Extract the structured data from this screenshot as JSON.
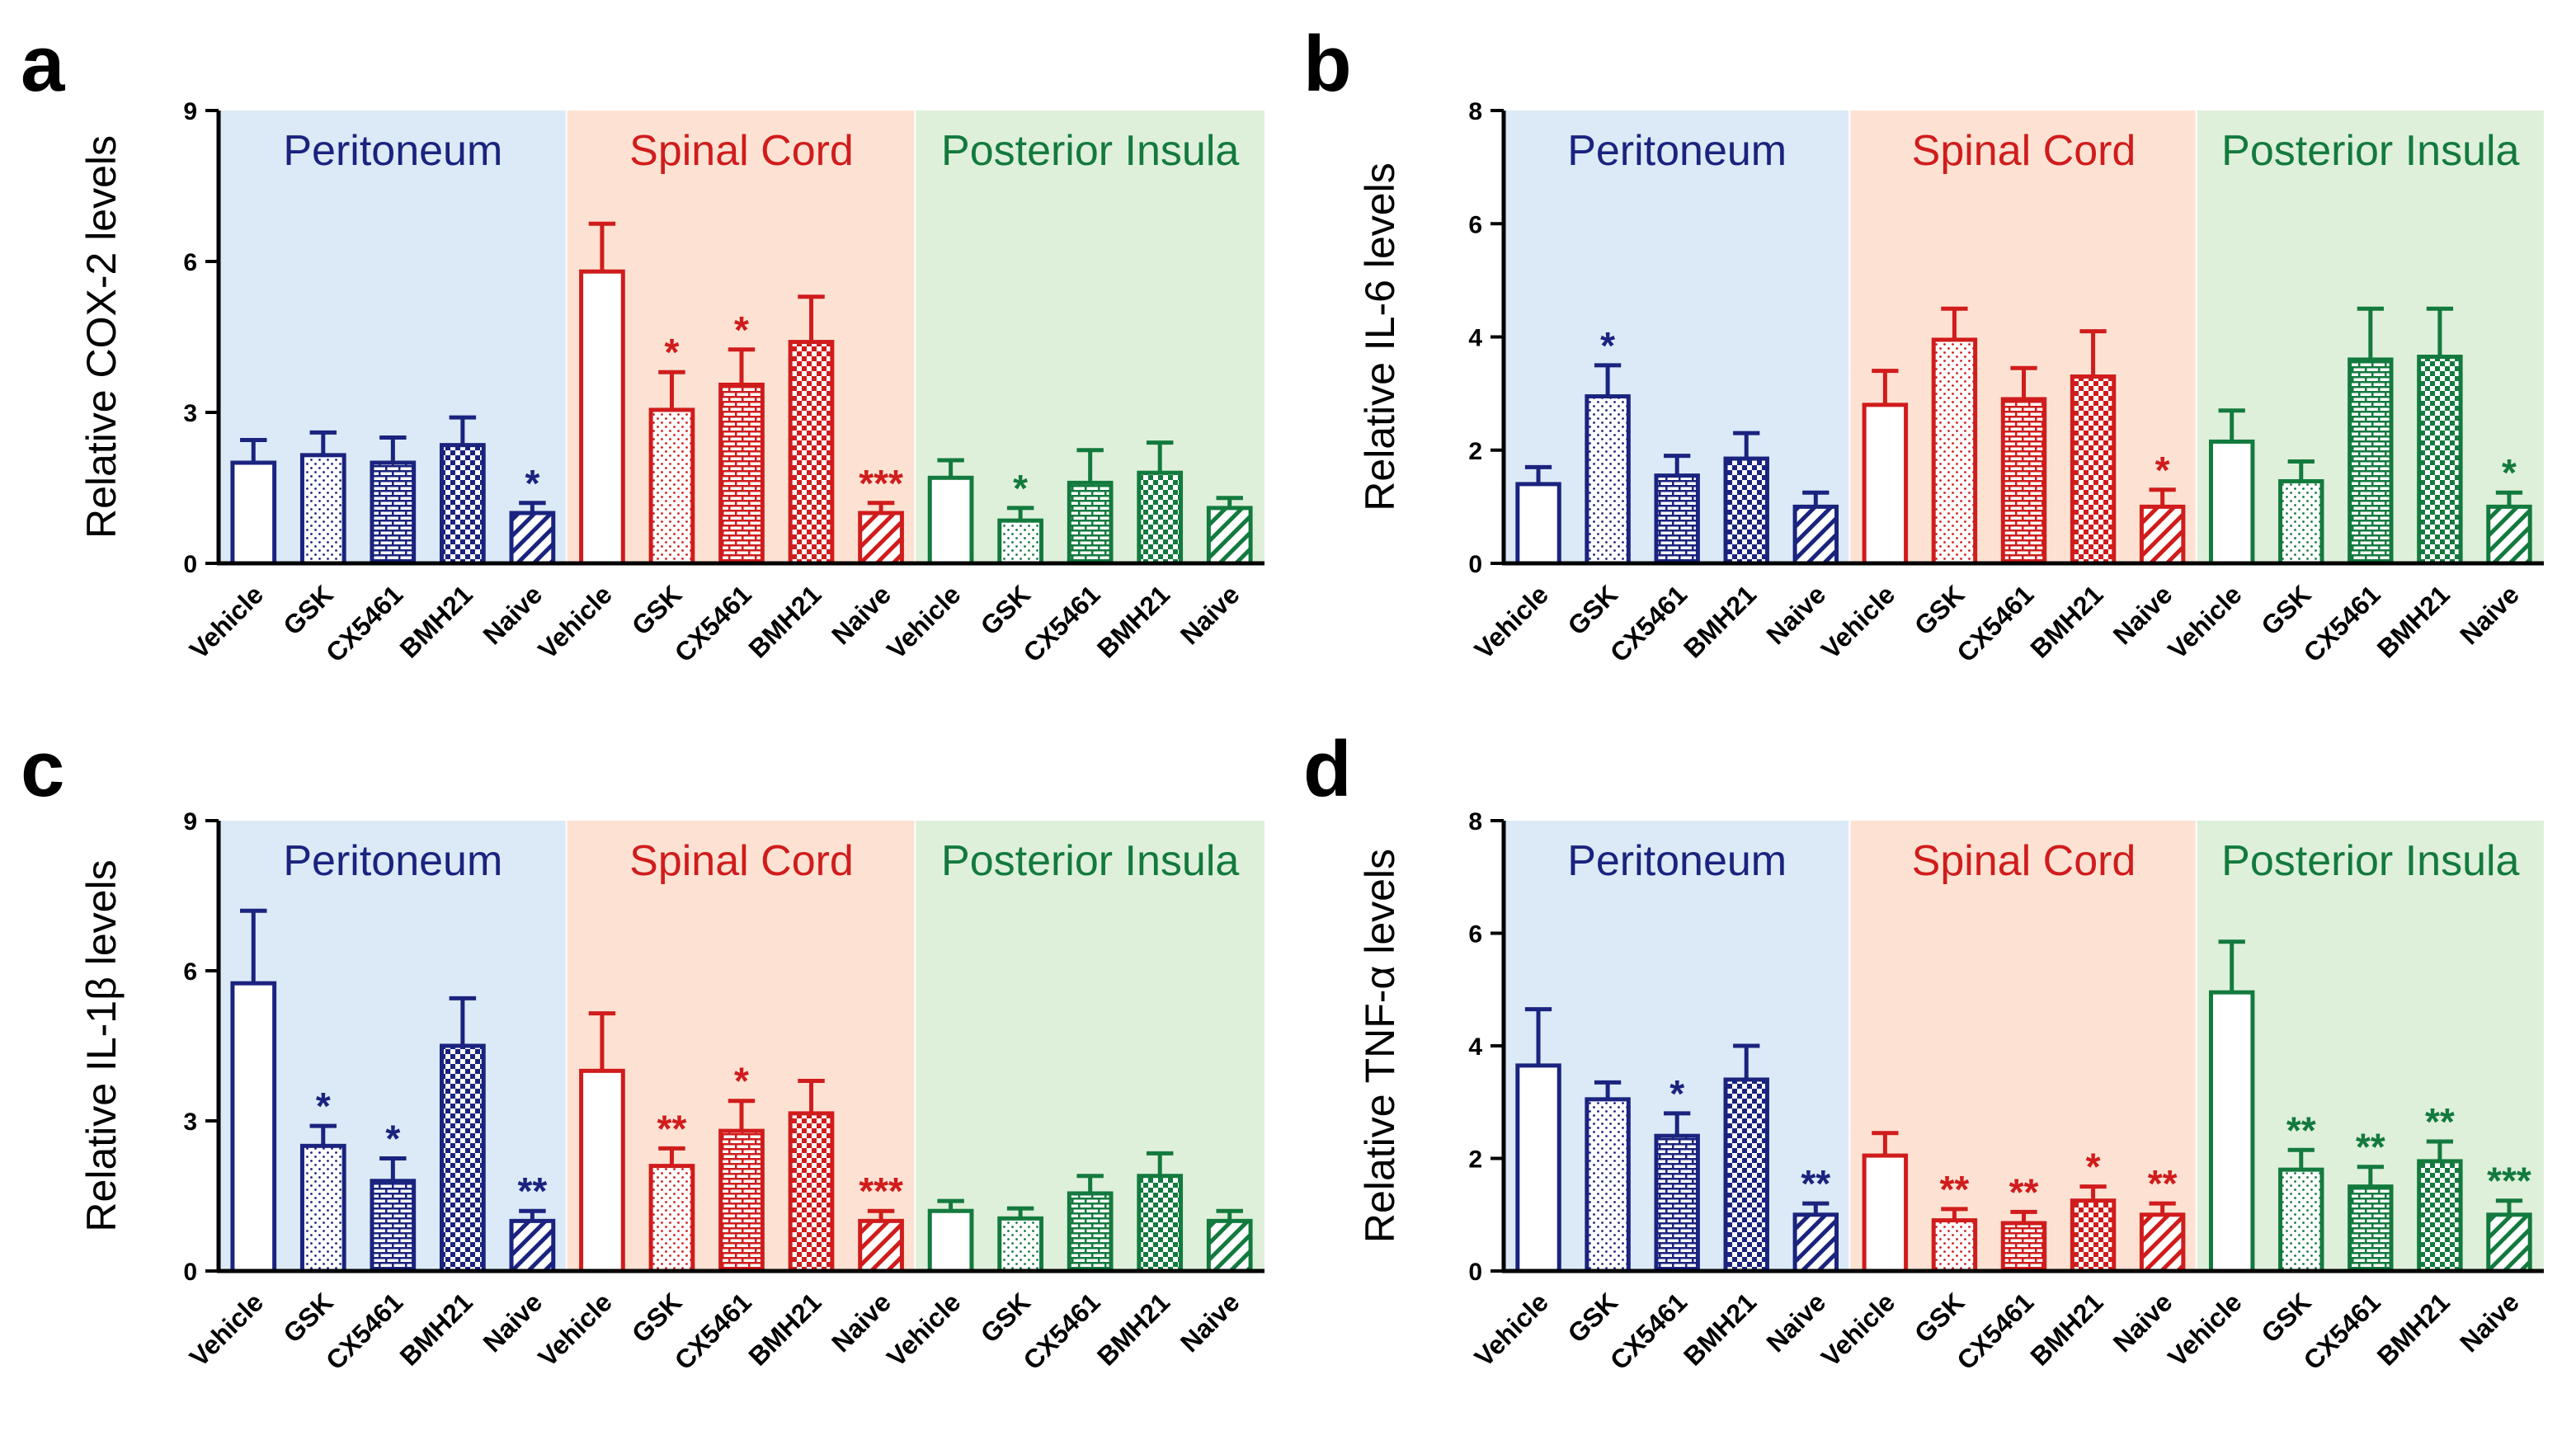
{
  "colors": {
    "peritoneum": "#1a237e",
    "spinal": "#d01c1c",
    "insula": "#137a3e",
    "bg_peritoneum": "#dbeaf6",
    "bg_spinal": "#fde2d3",
    "bg_insula": "#dff0da"
  },
  "regions": [
    "Peritoneum",
    "Spinal Cord",
    "Posterior Insula"
  ],
  "categories": [
    "Vehicle",
    "GSK",
    "CX5461",
    "BMH21",
    "Naive"
  ],
  "chart_data": [
    {
      "panel": "a",
      "type": "bar",
      "ylabel": "Relative COX-2 levels",
      "ylim": [
        0,
        9
      ],
      "yticks": [
        "0",
        "3",
        "6",
        "9"
      ],
      "yticks_num": [
        0,
        3,
        6,
        9
      ],
      "series": [
        {
          "name": "Peritoneum",
          "values": [
            2.0,
            2.15,
            2.0,
            2.35,
            1.0
          ],
          "errors": [
            0.45,
            0.45,
            0.5,
            0.55,
            0.2
          ],
          "stars": [
            "",
            "",
            "",
            "",
            "*"
          ]
        },
        {
          "name": "Spinal Cord",
          "values": [
            5.8,
            3.05,
            3.55,
            4.4,
            1.0
          ],
          "errors": [
            0.95,
            0.75,
            0.7,
            0.9,
            0.2
          ],
          "stars": [
            "",
            "*",
            "*",
            "",
            "***"
          ]
        },
        {
          "name": "Posterior Insula",
          "values": [
            1.7,
            0.85,
            1.6,
            1.8,
            1.1
          ],
          "errors": [
            0.35,
            0.25,
            0.65,
            0.6,
            0.2
          ],
          "stars": [
            "",
            "*",
            "",
            "",
            ""
          ]
        }
      ]
    },
    {
      "panel": "b",
      "type": "bar",
      "ylabel": "Relative IL-6 levels",
      "ylim": [
        0,
        8
      ],
      "yticks": [
        "0",
        "2",
        "4",
        "6",
        "8"
      ],
      "yticks_num": [
        0,
        2,
        4,
        6,
        8
      ],
      "series": [
        {
          "name": "Peritoneum",
          "values": [
            1.4,
            2.95,
            1.55,
            1.85,
            1.0
          ],
          "errors": [
            0.3,
            0.55,
            0.35,
            0.45,
            0.25
          ],
          "stars": [
            "",
            "*",
            "",
            "",
            ""
          ]
        },
        {
          "name": "Spinal Cord",
          "values": [
            2.8,
            3.95,
            2.9,
            3.3,
            1.0
          ],
          "errors": [
            0.6,
            0.55,
            0.55,
            0.8,
            0.3
          ],
          "stars": [
            "",
            "",
            "",
            "",
            "*"
          ]
        },
        {
          "name": "Posterior Insula",
          "values": [
            2.15,
            1.45,
            3.6,
            3.65,
            1.0
          ],
          "errors": [
            0.55,
            0.35,
            0.9,
            0.85,
            0.25
          ],
          "stars": [
            "",
            "",
            "",
            "",
            "*"
          ]
        }
      ]
    },
    {
      "panel": "c",
      "type": "bar",
      "ylabel": "Relative IL-1β levels",
      "ylim": [
        0,
        9
      ],
      "yticks": [
        "0",
        "3",
        "6",
        "9"
      ],
      "yticks_num": [
        0,
        3,
        6,
        9
      ],
      "series": [
        {
          "name": "Peritoneum",
          "values": [
            5.75,
            2.5,
            1.8,
            4.5,
            1.0
          ],
          "errors": [
            1.45,
            0.4,
            0.45,
            0.95,
            0.2
          ],
          "stars": [
            "",
            "*",
            "*",
            "",
            "**"
          ]
        },
        {
          "name": "Spinal Cord",
          "values": [
            4.0,
            2.1,
            2.8,
            3.15,
            1.0
          ],
          "errors": [
            1.15,
            0.35,
            0.6,
            0.65,
            0.2
          ],
          "stars": [
            "",
            "**",
            "*",
            "",
            "***"
          ]
        },
        {
          "name": "Posterior Insula",
          "values": [
            1.2,
            1.05,
            1.55,
            1.9,
            1.0
          ],
          "errors": [
            0.2,
            0.2,
            0.35,
            0.45,
            0.2
          ],
          "stars": [
            "",
            "",
            "",
            "",
            ""
          ]
        }
      ]
    },
    {
      "panel": "d",
      "type": "bar",
      "ylabel": "Relative TNF-α levels",
      "ylim": [
        0,
        8
      ],
      "yticks": [
        "0",
        "2",
        "4",
        "6",
        "8"
      ],
      "yticks_num": [
        0,
        2,
        4,
        6,
        8
      ],
      "series": [
        {
          "name": "Peritoneum",
          "values": [
            3.65,
            3.05,
            2.4,
            3.4,
            1.0
          ],
          "errors": [
            1.0,
            0.3,
            0.4,
            0.6,
            0.2
          ],
          "stars": [
            "",
            "",
            "*",
            "",
            "**"
          ]
        },
        {
          "name": "Spinal Cord",
          "values": [
            2.05,
            0.9,
            0.85,
            1.25,
            1.0
          ],
          "errors": [
            0.4,
            0.2,
            0.2,
            0.25,
            0.2
          ],
          "stars": [
            "",
            "**",
            "**",
            "*",
            "**"
          ]
        },
        {
          "name": "Posterior Insula",
          "values": [
            4.95,
            1.8,
            1.5,
            1.95,
            1.0
          ],
          "errors": [
            0.9,
            0.35,
            0.35,
            0.35,
            0.25
          ],
          "stars": [
            "",
            "**",
            "**",
            "**",
            "***"
          ]
        }
      ]
    }
  ]
}
